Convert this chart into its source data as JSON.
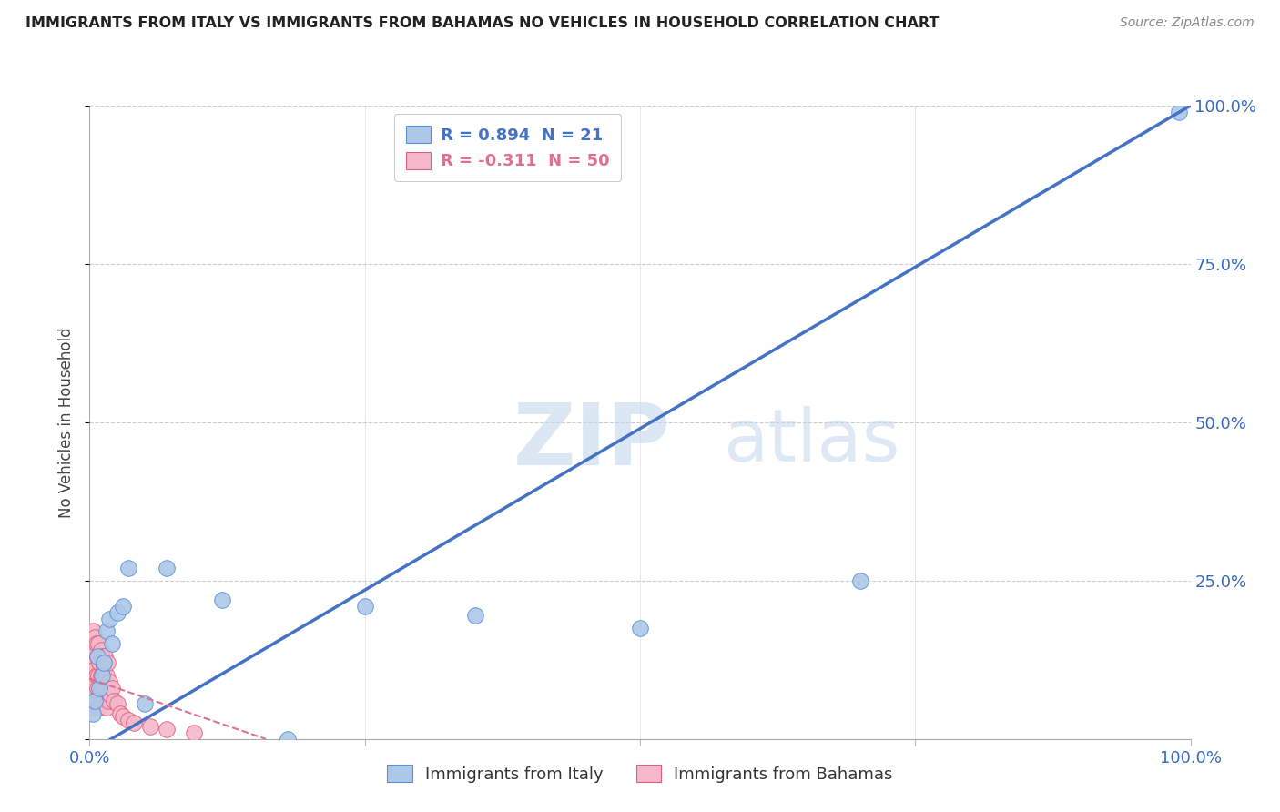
{
  "title": "IMMIGRANTS FROM ITALY VS IMMIGRANTS FROM BAHAMAS NO VEHICLES IN HOUSEHOLD CORRELATION CHART",
  "source": "Source: ZipAtlas.com",
  "ylabel": "No Vehicles in Household",
  "xlim": [
    0,
    1
  ],
  "ylim": [
    0,
    1
  ],
  "x_ticks": [
    0.0,
    0.25,
    0.5,
    0.75,
    1.0
  ],
  "y_ticks": [
    0.0,
    0.25,
    0.5,
    0.75,
    1.0
  ],
  "italy_color": "#adc8e8",
  "bahamas_color": "#f5b8cb",
  "italy_edge_color": "#5b8fd4",
  "bahamas_edge_color": "#e0607a",
  "italy_line_color": "#4472c4",
  "bahamas_line_color": "#e07090",
  "italy_R": 0.894,
  "italy_N": 21,
  "bahamas_R": -0.311,
  "bahamas_N": 50,
  "italy_line_x0": 0.0,
  "italy_line_y0": -0.02,
  "italy_line_x1": 1.0,
  "italy_line_y1": 1.0,
  "bahamas_line_x0": 0.0,
  "bahamas_line_y0": 0.095,
  "bahamas_line_x1": 0.16,
  "bahamas_line_y1": 0.0,
  "italy_scatter_x": [
    0.003,
    0.005,
    0.007,
    0.009,
    0.011,
    0.013,
    0.015,
    0.018,
    0.02,
    0.025,
    0.03,
    0.035,
    0.05,
    0.07,
    0.12,
    0.18,
    0.25,
    0.35,
    0.5,
    0.7,
    0.99
  ],
  "italy_scatter_y": [
    0.04,
    0.06,
    0.13,
    0.08,
    0.1,
    0.12,
    0.17,
    0.19,
    0.15,
    0.2,
    0.21,
    0.27,
    0.055,
    0.27,
    0.22,
    0.0,
    0.21,
    0.195,
    0.175,
    0.25,
    0.99
  ],
  "bahamas_scatter_x": [
    0.001,
    0.001,
    0.002,
    0.002,
    0.003,
    0.003,
    0.003,
    0.004,
    0.004,
    0.005,
    0.005,
    0.005,
    0.006,
    0.006,
    0.006,
    0.007,
    0.007,
    0.008,
    0.008,
    0.008,
    0.009,
    0.009,
    0.01,
    0.01,
    0.01,
    0.011,
    0.011,
    0.012,
    0.012,
    0.013,
    0.013,
    0.014,
    0.014,
    0.015,
    0.015,
    0.016,
    0.016,
    0.017,
    0.018,
    0.019,
    0.02,
    0.022,
    0.025,
    0.028,
    0.03,
    0.035,
    0.04,
    0.055,
    0.07,
    0.095
  ],
  "bahamas_scatter_y": [
    0.05,
    0.1,
    0.08,
    0.13,
    0.06,
    0.12,
    0.17,
    0.09,
    0.14,
    0.07,
    0.11,
    0.16,
    0.06,
    0.1,
    0.15,
    0.08,
    0.13,
    0.05,
    0.1,
    0.15,
    0.07,
    0.12,
    0.06,
    0.1,
    0.14,
    0.08,
    0.13,
    0.07,
    0.12,
    0.06,
    0.11,
    0.08,
    0.13,
    0.05,
    0.1,
    0.07,
    0.12,
    0.06,
    0.09,
    0.07,
    0.08,
    0.06,
    0.055,
    0.04,
    0.035,
    0.03,
    0.025,
    0.02,
    0.015,
    0.01
  ]
}
